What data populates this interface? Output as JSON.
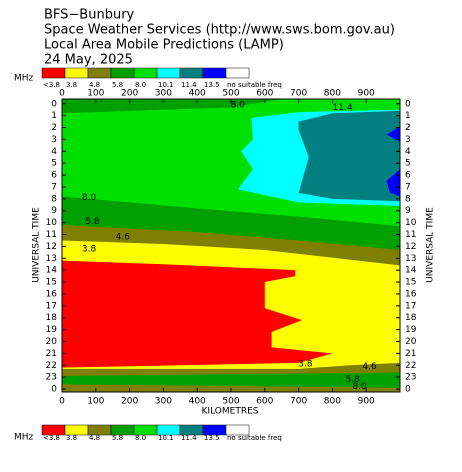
{
  "chart_data": {
    "type": "filled_contour",
    "title_lines": [
      "BFS−Bunbury",
      "Space Weather Services (http://www.sws.bom.gov.au)",
      "Local Area Mobile Predictions (LAMP)",
      "24 May, 2025"
    ],
    "legend": {
      "unit": "MHz",
      "colors": [
        "#ff0000",
        "#ffff00",
        "#808000",
        "#00a000",
        "#00e000",
        "#00ffff",
        "#008080",
        "#0000ff",
        "#ffffff"
      ],
      "labels": [
        "<3.8",
        "3.8",
        "4.8",
        "5.8",
        "8.0",
        "10.1",
        "11.4",
        "13.5",
        "no suitable freq"
      ]
    },
    "xlabel": "KILOMETRES",
    "ylabel": "UNIVERSAL TIME",
    "xlim": [
      0,
      1000
    ],
    "ylim": [
      -0.4,
      24.25
    ],
    "xticks": [
      0,
      100,
      200,
      300,
      400,
      500,
      600,
      700,
      800,
      900
    ],
    "yticks": [
      0,
      1,
      2,
      3,
      4,
      5,
      6,
      7,
      8,
      9,
      10,
      11,
      12,
      13,
      14,
      15,
      16,
      17,
      18,
      19,
      20,
      21,
      22,
      23,
      {
        "value": 24,
        "label": "0"
      }
    ],
    "regions": [
      {
        "color_index": 2,
        "points": [
          [
            0,
            -0.4
          ],
          [
            1000,
            -0.4
          ],
          [
            1000,
            24.25
          ],
          [
            0,
            24.25
          ]
        ]
      },
      {
        "color_index": 3,
        "points": [
          [
            0,
            -0.4
          ],
          [
            1000,
            -0.4
          ],
          [
            1000,
            12.3
          ],
          [
            700,
            11.5
          ],
          [
            400,
            10.8
          ],
          [
            0,
            10.2
          ]
        ]
      },
      {
        "color_index": 4,
        "points": [
          [
            0,
            0.8
          ],
          [
            500,
            0.3
          ],
          [
            650,
            -0.4
          ],
          [
            1000,
            -0.4
          ],
          [
            1000,
            10.3
          ],
          [
            700,
            9.5
          ],
          [
            400,
            8.8
          ],
          [
            200,
            8.3
          ],
          [
            0,
            7.8
          ]
        ]
      },
      {
        "color_index": 5,
        "points": [
          [
            560,
            1.2
          ],
          [
            700,
            0.7
          ],
          [
            1000,
            0.5
          ],
          [
            1000,
            8.6
          ],
          [
            700,
            8.3
          ],
          [
            520,
            7.2
          ],
          [
            565,
            5.5
          ],
          [
            530,
            4
          ],
          [
            565,
            3
          ]
        ]
      },
      {
        "color_index": 6,
        "points": [
          [
            700,
            1.5
          ],
          [
            800,
            0.8
          ],
          [
            1000,
            0.6
          ],
          [
            1000,
            8.2
          ],
          [
            800,
            8
          ],
          [
            700,
            7.5
          ],
          [
            730,
            4.5
          ],
          [
            700,
            2.2
          ]
        ]
      },
      {
        "color_index": 7,
        "points": [
          [
            960,
            2.6
          ],
          [
            1000,
            1.9
          ],
          [
            1000,
            3.2
          ]
        ]
      },
      {
        "color_index": 7,
        "points": [
          [
            960,
            6.5
          ],
          [
            1000,
            5.5
          ],
          [
            1000,
            7.8
          ],
          [
            970,
            7.5
          ]
        ]
      },
      {
        "color_index": 1,
        "points": [
          [
            0,
            11.5
          ],
          [
            300,
            11.8
          ],
          [
            600,
            12.3
          ],
          [
            1000,
            13.6
          ],
          [
            1000,
            21.8
          ],
          [
            850,
            22
          ],
          [
            700,
            22.3
          ],
          [
            0,
            22.3
          ]
        ]
      },
      {
        "color_index": 3,
        "points": [
          [
            0,
            22.9
          ],
          [
            1000,
            22.6
          ],
          [
            1000,
            23.9
          ],
          [
            0,
            23.6
          ]
        ]
      },
      {
        "color_index": 0,
        "points": [
          [
            0,
            13.2
          ],
          [
            300,
            13.5
          ],
          [
            690,
            14
          ],
          [
            690,
            14.5
          ],
          [
            600,
            15
          ],
          [
            600,
            17.2
          ],
          [
            710,
            18.2
          ],
          [
            620,
            19.2
          ],
          [
            620,
            20.5
          ],
          [
            800,
            21
          ],
          [
            700,
            21.8
          ],
          [
            0,
            22.2
          ]
        ]
      }
    ],
    "contour_labels": [
      {
        "text": "8.0",
        "x": 520,
        "y": 0.1
      },
      {
        "text": "11.4",
        "x": 830,
        "y": 0.3
      },
      {
        "text": "8.0",
        "x": 80,
        "y": 7.9
      },
      {
        "text": "5.8",
        "x": 90,
        "y": 9.9
      },
      {
        "text": "4.6",
        "x": 180,
        "y": 11.2
      },
      {
        "text": "3.8",
        "x": 80,
        "y": 12.2
      },
      {
        "text": "3.8",
        "x": 720,
        "y": 21.9
      },
      {
        "text": "4.6",
        "x": 910,
        "y": 22.1
      },
      {
        "text": "5.8",
        "x": 860,
        "y": 23.2
      },
      {
        "text": "8.0",
        "x": 880,
        "y": 23.8
      }
    ]
  }
}
